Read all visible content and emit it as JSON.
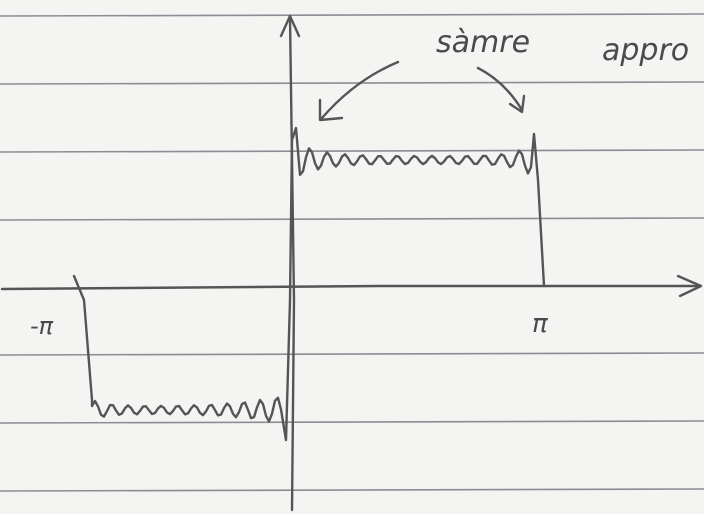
{
  "annotation": {
    "first": "sàmre",
    "second": "appro"
  },
  "axis_labels": {
    "left": "-π",
    "right": "π"
  }
}
